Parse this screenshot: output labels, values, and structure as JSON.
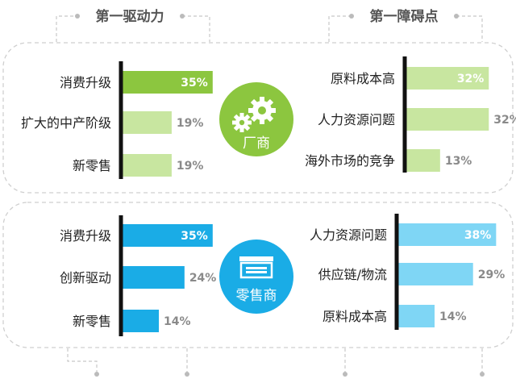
{
  "headers": {
    "left": "第一驱动力",
    "right": "第一障碍点"
  },
  "colors": {
    "manufacturer_bar": "#8cc63f",
    "manufacturer_bar_light": "#c8e6a0",
    "retailer_bar": "#1aace6",
    "retailer_bar_light": "#7fd6f5",
    "dash": "#c8c8c8",
    "axis": "#111111",
    "value_text": "#8a8a8a",
    "header_text": "#555555"
  },
  "icons": {
    "manufacturer": "gears-icon",
    "retailer": "storefront-icon"
  },
  "chart_data": [
    {
      "type": "bar",
      "orientation": "horizontal",
      "group": "厂商",
      "side": "第一驱动力",
      "categories": [
        "消费升级",
        "扩大的中产阶级",
        "新零售"
      ],
      "values": [
        35,
        19,
        19
      ],
      "unit": "%"
    },
    {
      "type": "bar",
      "orientation": "horizontal",
      "group": "厂商",
      "side": "第一障碍点",
      "categories": [
        "原料成本高",
        "人力资源问题",
        "海外市场的竞争"
      ],
      "values": [
        32,
        32,
        13
      ],
      "unit": "%"
    },
    {
      "type": "bar",
      "orientation": "horizontal",
      "group": "零售商",
      "side": "第一驱动力",
      "categories": [
        "消费升级",
        "创新驱动",
        "新零售"
      ],
      "values": [
        35,
        24,
        14
      ],
      "unit": "%"
    },
    {
      "type": "bar",
      "orientation": "horizontal",
      "group": "零售商",
      "side": "第一障碍点",
      "categories": [
        "人力资源问题",
        "供应链/物流",
        "原料成本高"
      ],
      "values": [
        38,
        29,
        14
      ],
      "unit": "%"
    }
  ]
}
